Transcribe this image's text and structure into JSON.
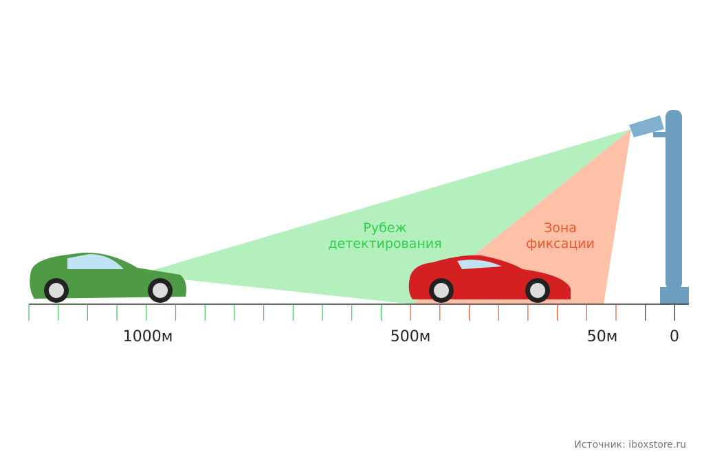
{
  "zones": [
    {
      "lines": [
        "Рубеж",
        "детектирования"
      ]
    },
    {
      "lines": [
        "Зона",
        "фиксации"
      ]
    }
  ],
  "scale_labels": [
    "1000м",
    "500м",
    "50м",
    "0"
  ],
  "source": "Источник: iboxstore.ru"
}
